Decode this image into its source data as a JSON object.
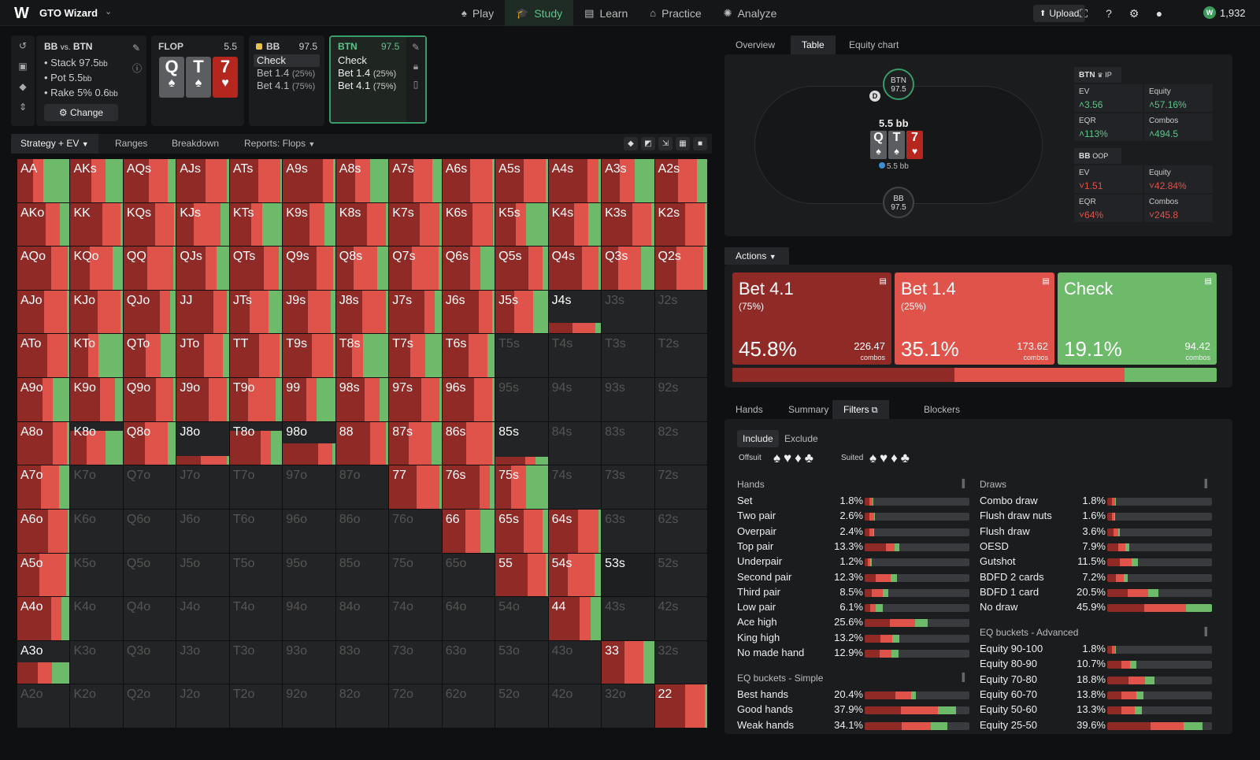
{
  "app": {
    "logo": "W",
    "name": "GTO Wizard"
  },
  "nav": [
    {
      "label": "Play",
      "icon": "play-icon",
      "glyph": "♠"
    },
    {
      "label": "Study",
      "icon": "study-icon",
      "glyph": "🎓"
    },
    {
      "label": "Learn",
      "icon": "learn-icon",
      "glyph": "▤"
    },
    {
      "label": "Practice",
      "icon": "practice-icon",
      "glyph": "⌂"
    },
    {
      "label": "Analyze",
      "icon": "analyze-icon",
      "glyph": "✺"
    }
  ],
  "topright": {
    "upload": "Upload",
    "coins": "1,932"
  },
  "info": {
    "title_a": "BB",
    "title_vs": "vs.",
    "title_b": "BTN",
    "stack": "Stack 97.5",
    "pot": "Pot 5.5",
    "rake": "Rake 5% 0.6",
    "unit": "bb",
    "change": "Change"
  },
  "flop": {
    "label": "FLOP",
    "value": "5.5",
    "cards": [
      {
        "rank": "Q",
        "suit": "♠",
        "color": "s"
      },
      {
        "rank": "T",
        "suit": "♠",
        "color": "s"
      },
      {
        "rank": "7",
        "suit": "♥",
        "color": "h"
      }
    ]
  },
  "bb_panel": {
    "label": "BB",
    "value": "97.5",
    "options": [
      {
        "name": "Check",
        "pct": ""
      },
      {
        "name": "Bet 1.4",
        "pct": "(25%)"
      },
      {
        "name": "Bet 4.1",
        "pct": "(75%)"
      }
    ]
  },
  "btn_panel": {
    "label": "BTN",
    "value": "97.5",
    "options": [
      {
        "name": "Check",
        "pct": ""
      },
      {
        "name": "Bet 1.4",
        "pct": "(25%)"
      },
      {
        "name": "Bet 4.1",
        "pct": "(75%)"
      }
    ]
  },
  "tabs": {
    "strategy": "Strategy + EV",
    "ranges": "Ranges",
    "breakdown": "Breakdown",
    "reports": "Reports: Flops"
  },
  "colors": {
    "bet_big": "#8f2a27",
    "bet_small": "#e0534a",
    "check": "#6dbb6a",
    "accent": "#5fc48a"
  },
  "hands": [
    [
      "AA",
      "AKs",
      "AQs",
      "AJs",
      "ATs",
      "A9s",
      "A8s",
      "A7s",
      "A6s",
      "A5s",
      "A4s",
      "A3s",
      "A2s"
    ],
    [
      "AKo",
      "KK",
      "KQs",
      "KJs",
      "KTs",
      "K9s",
      "K8s",
      "K7s",
      "K6s",
      "K5s",
      "K4s",
      "K3s",
      "K2s"
    ],
    [
      "AQo",
      "KQo",
      "QQ",
      "QJs",
      "QTs",
      "Q9s",
      "Q8s",
      "Q7s",
      "Q6s",
      "Q5s",
      "Q4s",
      "Q3s",
      "Q2s"
    ],
    [
      "AJo",
      "KJo",
      "QJo",
      "JJ",
      "JTs",
      "J9s",
      "J8s",
      "J7s",
      "J6s",
      "J5s",
      "J4s",
      "J3s",
      "J2s"
    ],
    [
      "ATo",
      "KTo",
      "QTo",
      "JTo",
      "TT",
      "T9s",
      "T8s",
      "T7s",
      "T6s",
      "T5s",
      "T4s",
      "T3s",
      "T2s"
    ],
    [
      "A9o",
      "K9o",
      "Q9o",
      "J9o",
      "T9o",
      "99",
      "98s",
      "97s",
      "96s",
      "95s",
      "94s",
      "93s",
      "92s"
    ],
    [
      "A8o",
      "K8o",
      "Q8o",
      "J8o",
      "T8o",
      "98o",
      "88",
      "87s",
      "86s",
      "85s",
      "84s",
      "83s",
      "82s"
    ],
    [
      "A7o",
      "K7o",
      "Q7o",
      "J7o",
      "T7o",
      "97o",
      "87o",
      "77",
      "76s",
      "75s",
      "74s",
      "73s",
      "72s"
    ],
    [
      "A6o",
      "K6o",
      "Q6o",
      "J6o",
      "T6o",
      "96o",
      "86o",
      "76o",
      "66",
      "65s",
      "64s",
      "63s",
      "62s"
    ],
    [
      "A5o",
      "K5o",
      "Q5o",
      "J5o",
      "T5o",
      "95o",
      "85o",
      "75o",
      "65o",
      "55",
      "54s",
      "53s",
      "52s"
    ],
    [
      "A4o",
      "K4o",
      "Q4o",
      "J4o",
      "T4o",
      "94o",
      "84o",
      "74o",
      "64o",
      "54o",
      "44",
      "43s",
      "42s"
    ],
    [
      "A3o",
      "K3o",
      "Q3o",
      "J3o",
      "T3o",
      "93o",
      "83o",
      "73o",
      "63o",
      "53o",
      "43o",
      "33",
      "32s"
    ],
    [
      "A2o",
      "K2o",
      "Q2o",
      "J2o",
      "T2o",
      "92o",
      "82o",
      "72o",
      "62o",
      "52o",
      "42o",
      "32o",
      "22"
    ]
  ],
  "table": {
    "tabs": [
      "Overview",
      "Table",
      "Equity chart"
    ],
    "btn_seat": {
      "name": "BTN",
      "stack": "97.5"
    },
    "bb_seat": {
      "name": "BB",
      "stack": "97.5"
    },
    "dealer": "D",
    "pot": "5.5 bb",
    "pot_small": "5.5 bb",
    "btn_stats": {
      "title": "BTN",
      "pos": "IP",
      "ev_k": "EV",
      "ev": "3.56",
      "eq_k": "Equity",
      "eq": "57.16%",
      "eqr_k": "EQR",
      "eqr": "113%",
      "comb_k": "Combos",
      "comb": "494.5"
    },
    "bb_stats": {
      "title": "BB",
      "pos": "OOP",
      "ev_k": "EV",
      "ev": "1.51",
      "eq_k": "Equity",
      "eq": "42.84%",
      "eqr_k": "EQR",
      "eqr": "64%",
      "comb_k": "Combos",
      "comb": "245.8"
    }
  },
  "actions": {
    "header": "Actions",
    "items": [
      {
        "name": "Bet 4.1",
        "pct": "(75%)",
        "freq": "45.8%",
        "combos": "226.47",
        "combos_label": "combos",
        "color": "#8f2a27",
        "fraction": 0.458
      },
      {
        "name": "Bet 1.4",
        "pct": "(25%)",
        "freq": "35.1%",
        "combos": "173.62",
        "combos_label": "combos",
        "color": "#e0534a",
        "fraction": 0.351
      },
      {
        "name": "Check",
        "pct": "",
        "freq": "19.1%",
        "combos": "94.42",
        "combos_label": "combos",
        "color": "#6dbb6a",
        "fraction": 0.191
      }
    ]
  },
  "bottom_tabs": [
    "Hands",
    "Summary",
    "Filters",
    "Blockers"
  ],
  "filters": {
    "include": "Include",
    "exclude": "Exclude",
    "offsuit": "Offsuit",
    "suited": "Suited",
    "hands_title": "Hands",
    "hands": [
      {
        "name": "Set",
        "value": "1.8%",
        "frac": 0.018,
        "mix": [
          0.6,
          0.3,
          0.1
        ]
      },
      {
        "name": "Two pair",
        "value": "2.6%",
        "frac": 0.026,
        "mix": [
          0.5,
          0.4,
          0.1
        ]
      },
      {
        "name": "Overpair",
        "value": "2.4%",
        "frac": 0.024,
        "mix": [
          0.5,
          0.4,
          0.1
        ]
      },
      {
        "name": "Top pair",
        "value": "13.3%",
        "frac": 0.133,
        "mix": [
          0.6,
          0.25,
          0.15
        ]
      },
      {
        "name": "Underpair",
        "value": "1.2%",
        "frac": 0.012,
        "mix": [
          0.5,
          0.3,
          0.2
        ]
      },
      {
        "name": "Second pair",
        "value": "12.3%",
        "frac": 0.123,
        "mix": [
          0.35,
          0.45,
          0.2
        ]
      },
      {
        "name": "Third pair",
        "value": "8.5%",
        "frac": 0.085,
        "mix": [
          0.3,
          0.45,
          0.25
        ]
      },
      {
        "name": "Low pair",
        "value": "6.1%",
        "frac": 0.061,
        "mix": [
          0.3,
          0.3,
          0.4
        ]
      },
      {
        "name": "Ace high",
        "value": "25.6%",
        "frac": 0.256,
        "mix": [
          0.4,
          0.4,
          0.2
        ]
      },
      {
        "name": "King high",
        "value": "13.2%",
        "frac": 0.132,
        "mix": [
          0.45,
          0.35,
          0.2
        ]
      },
      {
        "name": "No made hand",
        "value": "12.9%",
        "frac": 0.129,
        "mix": [
          0.45,
          0.35,
          0.2
        ]
      }
    ],
    "eq_simple_title": "EQ buckets - Simple",
    "eq_simple": [
      {
        "name": "Best hands",
        "value": "20.4%",
        "frac": 0.204,
        "mix": [
          0.6,
          0.3,
          0.1
        ]
      },
      {
        "name": "Good hands",
        "value": "37.9%",
        "frac": 0.379,
        "mix": [
          0.4,
          0.4,
          0.2
        ]
      },
      {
        "name": "Weak hands",
        "value": "34.1%",
        "frac": 0.341,
        "mix": [
          0.45,
          0.35,
          0.2
        ]
      }
    ],
    "draws_title": "Draws",
    "draws": [
      {
        "name": "Combo draw",
        "value": "1.8%",
        "frac": 0.018,
        "mix": [
          0.6,
          0.3,
          0.1
        ]
      },
      {
        "name": "Flush draw nuts",
        "value": "1.6%",
        "frac": 0.016,
        "mix": [
          0.6,
          0.3,
          0.1
        ]
      },
      {
        "name": "Flush draw",
        "value": "3.6%",
        "frac": 0.036,
        "mix": [
          0.5,
          0.4,
          0.1
        ]
      },
      {
        "name": "OESD",
        "value": "7.9%",
        "frac": 0.079,
        "mix": [
          0.5,
          0.3,
          0.2
        ]
      },
      {
        "name": "Gutshot",
        "value": "11.5%",
        "frac": 0.115,
        "mix": [
          0.4,
          0.4,
          0.2
        ]
      },
      {
        "name": "BDFD 2 cards",
        "value": "7.2%",
        "frac": 0.072,
        "mix": [
          0.4,
          0.4,
          0.2
        ]
      },
      {
        "name": "BDFD 1 card",
        "value": "20.5%",
        "frac": 0.205,
        "mix": [
          0.4,
          0.4,
          0.2
        ]
      },
      {
        "name": "No draw",
        "value": "45.9%",
        "frac": 0.459,
        "mix": [
          0.35,
          0.4,
          0.25
        ]
      }
    ],
    "eq_adv_title": "EQ buckets - Advanced",
    "eq_adv": [
      {
        "name": "Equity 90-100",
        "value": "1.8%",
        "frac": 0.018,
        "mix": [
          0.6,
          0.3,
          0.1
        ]
      },
      {
        "name": "Equity 80-90",
        "value": "10.7%",
        "frac": 0.107,
        "mix": [
          0.5,
          0.3,
          0.2
        ]
      },
      {
        "name": "Equity 70-80",
        "value": "18.8%",
        "frac": 0.188,
        "mix": [
          0.45,
          0.35,
          0.2
        ]
      },
      {
        "name": "Equity 60-70",
        "value": "13.8%",
        "frac": 0.138,
        "mix": [
          0.4,
          0.4,
          0.2
        ]
      },
      {
        "name": "Equity 50-60",
        "value": "13.3%",
        "frac": 0.133,
        "mix": [
          0.4,
          0.4,
          0.2
        ]
      },
      {
        "name": "Equity 25-50",
        "value": "39.6%",
        "frac": 0.396,
        "mix": [
          0.45,
          0.35,
          0.2
        ]
      }
    ]
  }
}
